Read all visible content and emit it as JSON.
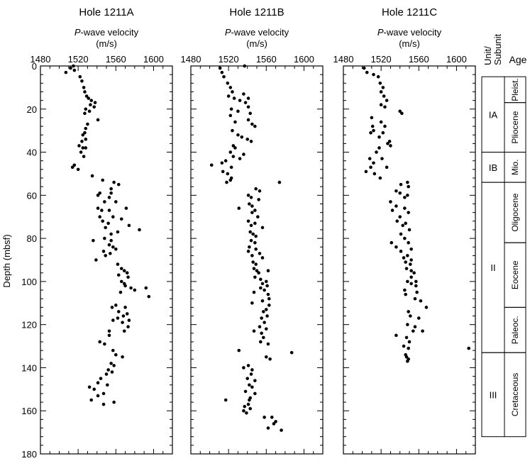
{
  "chart_data": [
    {
      "type": "scatter",
      "title": "Hole 1211A",
      "xlabel_italic": "P",
      "xlabel_rest": "-wave velocity",
      "xlabel_units": "(m/s)",
      "ylabel": "Depth (mbsf)",
      "xlim": [
        1480,
        1620
      ],
      "ylim": [
        0,
        180
      ],
      "xticks": [
        1480,
        1520,
        1560,
        1600
      ],
      "yticks": [
        0,
        20,
        40,
        60,
        80,
        100,
        120,
        140,
        160,
        180
      ],
      "points": [
        [
          1507,
          3
        ],
        [
          1512,
          1
        ],
        [
          1515,
          0
        ],
        [
          1516,
          2
        ],
        [
          1522,
          5
        ],
        [
          1524,
          7
        ],
        [
          1526,
          10
        ],
        [
          1527,
          12
        ],
        [
          1529,
          14
        ],
        [
          1531,
          15
        ],
        [
          1534,
          16
        ],
        [
          1533,
          18
        ],
        [
          1537,
          19
        ],
        [
          1538,
          17
        ],
        [
          1528,
          20
        ],
        [
          1532,
          21
        ],
        [
          1527,
          22
        ],
        [
          1541,
          25
        ],
        [
          1530,
          27
        ],
        [
          1528,
          29
        ],
        [
          1527,
          31
        ],
        [
          1525,
          32
        ],
        [
          1528,
          34
        ],
        [
          1524,
          35
        ],
        [
          1521,
          37
        ],
        [
          1525,
          38
        ],
        [
          1528,
          38
        ],
        [
          1523,
          40
        ],
        [
          1526,
          42
        ],
        [
          1516,
          46
        ],
        [
          1514,
          47
        ],
        [
          1520,
          48
        ],
        [
          1535,
          51
        ],
        [
          1546,
          53
        ],
        [
          1558,
          54
        ],
        [
          1563,
          55
        ],
        [
          1555,
          57
        ],
        [
          1543,
          59
        ],
        [
          1555,
          59
        ],
        [
          1541,
          60
        ],
        [
          1553,
          61
        ],
        [
          1548,
          63
        ],
        [
          1560,
          63
        ],
        [
          1541,
          66
        ],
        [
          1545,
          67
        ],
        [
          1553,
          67
        ],
        [
          1571,
          66
        ],
        [
          1543,
          70
        ],
        [
          1557,
          70
        ],
        [
          1566,
          71
        ],
        [
          1546,
          72
        ],
        [
          1552,
          73
        ],
        [
          1574,
          74
        ],
        [
          1549,
          75
        ],
        [
          1585,
          76
        ],
        [
          1562,
          77
        ],
        [
          1555,
          78
        ],
        [
          1548,
          80
        ],
        [
          1536,
          81
        ],
        [
          1555,
          81
        ],
        [
          1553,
          83
        ],
        [
          1557,
          84
        ],
        [
          1560,
          85
        ],
        [
          1547,
          86
        ],
        [
          1554,
          87
        ],
        [
          1549,
          88
        ],
        [
          1539,
          90
        ],
        [
          1562,
          92
        ],
        [
          1566,
          94
        ],
        [
          1569,
          95
        ],
        [
          1572,
          96
        ],
        [
          1563,
          97
        ],
        [
          1573,
          98
        ],
        [
          1566,
          100
        ],
        [
          1569,
          101
        ],
        [
          1570,
          102
        ],
        [
          1576,
          103
        ],
        [
          1592,
          103
        ],
        [
          1580,
          104
        ],
        [
          1565,
          105
        ],
        [
          1595,
          107
        ],
        [
          1560,
          111
        ],
        [
          1556,
          112
        ],
        [
          1570,
          112
        ],
        [
          1563,
          114
        ],
        [
          1572,
          115
        ],
        [
          1568,
          116
        ],
        [
          1562,
          117
        ],
        [
          1557,
          118
        ],
        [
          1574,
          118
        ],
        [
          1567,
          119
        ],
        [
          1573,
          121
        ],
        [
          1553,
          123
        ],
        [
          1569,
          123
        ],
        [
          1553,
          125
        ],
        [
          1543,
          128
        ],
        [
          1548,
          129
        ],
        [
          1557,
          132
        ],
        [
          1560,
          134
        ],
        [
          1567,
          135
        ],
        [
          1555,
          138
        ],
        [
          1558,
          139
        ],
        [
          1552,
          141
        ],
        [
          1556,
          142
        ],
        [
          1550,
          143
        ],
        [
          1544,
          145
        ],
        [
          1541,
          147
        ],
        [
          1551,
          148
        ],
        [
          1532,
          149
        ],
        [
          1537,
          150
        ],
        [
          1547,
          152
        ],
        [
          1541,
          153
        ],
        [
          1534,
          155
        ],
        [
          1558,
          156
        ],
        [
          1547,
          157
        ]
      ]
    },
    {
      "type": "scatter",
      "title": "Hole 1211B",
      "xlabel_italic": "P",
      "xlabel_rest": "-wave velocity",
      "xlabel_units": "(m/s)",
      "xlim": [
        1480,
        1620
      ],
      "ylim": [
        0,
        180
      ],
      "xticks": [
        1480,
        1520,
        1560,
        1600
      ],
      "yticks": [
        0,
        20,
        40,
        60,
        80,
        100,
        120,
        140,
        160,
        180
      ],
      "points": [
        [
          1513,
          3
        ],
        [
          1515,
          5
        ],
        [
          1537,
          0
        ],
        [
          1511,
          1
        ],
        [
          1519,
          8
        ],
        [
          1522,
          10
        ],
        [
          1524,
          12
        ],
        [
          1520,
          14
        ],
        [
          1526,
          15
        ],
        [
          1536,
          13
        ],
        [
          1541,
          15
        ],
        [
          1532,
          16
        ],
        [
          1538,
          17
        ],
        [
          1541,
          19
        ],
        [
          1523,
          20
        ],
        [
          1530,
          21
        ],
        [
          1543,
          22
        ],
        [
          1522,
          23
        ],
        [
          1541,
          25
        ],
        [
          1527,
          26
        ],
        [
          1545,
          27
        ],
        [
          1548,
          28
        ],
        [
          1524,
          30
        ],
        [
          1530,
          32
        ],
        [
          1534,
          33
        ],
        [
          1540,
          34
        ],
        [
          1544,
          35
        ],
        [
          1525,
          37
        ],
        [
          1527,
          38
        ],
        [
          1522,
          40
        ],
        [
          1536,
          41
        ],
        [
          1525,
          42
        ],
        [
          1532,
          43
        ],
        [
          1517,
          44
        ],
        [
          1513,
          45
        ],
        [
          1502,
          46
        ],
        [
          1523,
          47
        ],
        [
          1514,
          49
        ],
        [
          1519,
          50
        ],
        [
          1523,
          52
        ],
        [
          1522,
          53
        ],
        [
          1518,
          54
        ],
        [
          1574,
          54
        ],
        [
          1549,
          57
        ],
        [
          1553,
          58
        ],
        [
          1541,
          60
        ],
        [
          1544,
          61
        ],
        [
          1552,
          62
        ],
        [
          1542,
          64
        ],
        [
          1545,
          65
        ],
        [
          1531,
          66
        ],
        [
          1548,
          67
        ],
        [
          1545,
          68
        ],
        [
          1551,
          70
        ],
        [
          1541,
          72
        ],
        [
          1548,
          73
        ],
        [
          1544,
          74
        ],
        [
          1556,
          75
        ],
        [
          1543,
          77
        ],
        [
          1546,
          78
        ],
        [
          1549,
          79
        ],
        [
          1544,
          81
        ],
        [
          1548,
          82
        ],
        [
          1542,
          84
        ],
        [
          1549,
          85
        ],
        [
          1541,
          86
        ],
        [
          1553,
          87
        ],
        [
          1545,
          88
        ],
        [
          1556,
          89
        ],
        [
          1546,
          91
        ],
        [
          1549,
          92
        ],
        [
          1547,
          94
        ],
        [
          1550,
          95
        ],
        [
          1562,
          95
        ],
        [
          1552,
          96
        ],
        [
          1548,
          98
        ],
        [
          1554,
          99
        ],
        [
          1560,
          100
        ],
        [
          1556,
          101
        ],
        [
          1561,
          102
        ],
        [
          1554,
          103
        ],
        [
          1558,
          104
        ],
        [
          1547,
          105
        ],
        [
          1562,
          106
        ],
        [
          1563,
          108
        ],
        [
          1556,
          109
        ],
        [
          1545,
          110
        ],
        [
          1563,
          111
        ],
        [
          1560,
          113
        ],
        [
          1557,
          114
        ],
        [
          1561,
          116
        ],
        [
          1555,
          117
        ],
        [
          1558,
          119
        ],
        [
          1553,
          121
        ],
        [
          1560,
          122
        ],
        [
          1547,
          123
        ],
        [
          1555,
          124
        ],
        [
          1557,
          126
        ],
        [
          1554,
          128
        ],
        [
          1562,
          129
        ],
        [
          1531,
          132
        ],
        [
          1587,
          133
        ],
        [
          1560,
          135
        ],
        [
          1564,
          136
        ],
        [
          1541,
          139
        ],
        [
          1536,
          140
        ],
        [
          1545,
          141
        ],
        [
          1544,
          143
        ],
        [
          1540,
          145
        ],
        [
          1548,
          146
        ],
        [
          1542,
          148
        ],
        [
          1545,
          149
        ],
        [
          1538,
          151
        ],
        [
          1548,
          152
        ],
        [
          1543,
          154
        ],
        [
          1542,
          155
        ],
        [
          1517,
          155
        ],
        [
          1541,
          157
        ],
        [
          1537,
          158
        ],
        [
          1543,
          159
        ],
        [
          1536,
          160
        ],
        [
          1539,
          161
        ],
        [
          1558,
          163
        ],
        [
          1566,
          163
        ],
        [
          1570,
          165
        ],
        [
          1568,
          166
        ],
        [
          1562,
          168
        ],
        [
          1576,
          169
        ]
      ]
    },
    {
      "type": "scatter",
      "title": "Hole 1211C",
      "xlabel_italic": "P",
      "xlabel_rest": "-wave velocity",
      "xlabel_units": "(m/s)",
      "xlim": [
        1480,
        1620
      ],
      "ylim": [
        0,
        180
      ],
      "xticks": [
        1480,
        1520,
        1560,
        1600
      ],
      "yticks": [
        0,
        20,
        40,
        60,
        80,
        100,
        120,
        140,
        160,
        180
      ],
      "points": [
        [
          1502,
          1
        ],
        [
          1505,
          3
        ],
        [
          1512,
          4
        ],
        [
          1517,
          5
        ],
        [
          1519,
          8
        ],
        [
          1522,
          10
        ],
        [
          1520,
          12
        ],
        [
          1523,
          14
        ],
        [
          1526,
          16
        ],
        [
          1520,
          18
        ],
        [
          1524,
          19
        ],
        [
          1540,
          21
        ],
        [
          1542,
          22
        ],
        [
          1510,
          24
        ],
        [
          1520,
          26
        ],
        [
          1511,
          28
        ],
        [
          1524,
          28
        ],
        [
          1512,
          30
        ],
        [
          1509,
          31
        ],
        [
          1522,
          31
        ],
        [
          1518,
          33
        ],
        [
          1529,
          35
        ],
        [
          1527,
          36
        ],
        [
          1530,
          37
        ],
        [
          1518,
          38
        ],
        [
          1515,
          40
        ],
        [
          1508,
          43
        ],
        [
          1521,
          43
        ],
        [
          1512,
          45
        ],
        [
          1509,
          47
        ],
        [
          1526,
          47
        ],
        [
          1504,
          49
        ],
        [
          1513,
          50
        ],
        [
          1519,
          52
        ],
        [
          1548,
          54
        ],
        [
          1541,
          55
        ],
        [
          1549,
          56
        ],
        [
          1536,
          58
        ],
        [
          1540,
          59
        ],
        [
          1548,
          60
        ],
        [
          1545,
          61
        ],
        [
          1530,
          63
        ],
        [
          1536,
          65
        ],
        [
          1545,
          66
        ],
        [
          1532,
          67
        ],
        [
          1549,
          68
        ],
        [
          1540,
          70
        ],
        [
          1537,
          72
        ],
        [
          1546,
          73
        ],
        [
          1543,
          74
        ],
        [
          1550,
          76
        ],
        [
          1541,
          78
        ],
        [
          1545,
          80
        ],
        [
          1531,
          82
        ],
        [
          1549,
          82
        ],
        [
          1536,
          84
        ],
        [
          1552,
          85
        ],
        [
          1541,
          86
        ],
        [
          1548,
          88
        ],
        [
          1544,
          89
        ],
        [
          1552,
          90
        ],
        [
          1546,
          91
        ],
        [
          1551,
          92
        ],
        [
          1547,
          94
        ],
        [
          1552,
          95
        ],
        [
          1555,
          96
        ],
        [
          1552,
          98
        ],
        [
          1548,
          100
        ],
        [
          1557,
          100
        ],
        [
          1552,
          101
        ],
        [
          1557,
          102
        ],
        [
          1545,
          104
        ],
        [
          1558,
          105
        ],
        [
          1546,
          106
        ],
        [
          1556,
          108
        ],
        [
          1562,
          109
        ],
        [
          1568,
          112
        ],
        [
          1549,
          114
        ],
        [
          1551,
          116
        ],
        [
          1560,
          117
        ],
        [
          1548,
          120
        ],
        [
          1556,
          121
        ],
        [
          1554,
          123
        ],
        [
          1564,
          123
        ],
        [
          1536,
          125
        ],
        [
          1547,
          126
        ],
        [
          1550,
          128
        ],
        [
          1544,
          130
        ],
        [
          1549,
          131
        ],
        [
          1613,
          131
        ],
        [
          1546,
          134
        ],
        [
          1547,
          135
        ],
        [
          1549,
          136
        ],
        [
          1548,
          137
        ]
      ]
    }
  ],
  "stratigraphy": {
    "unit_header": "Unit/\nSubunit",
    "age_header": "Age",
    "units": [
      {
        "label": "IA",
        "top": 5,
        "bottom": 40
      },
      {
        "label": "IB",
        "top": 40,
        "bottom": 54
      },
      {
        "label": "II",
        "top": 54,
        "bottom": 133
      },
      {
        "label": "III",
        "top": 133,
        "bottom": 172
      }
    ],
    "ages": [
      {
        "label": "Pleist.",
        "top": 5,
        "bottom": 17
      },
      {
        "label": "Pliocene",
        "top": 17,
        "bottom": 40
      },
      {
        "label": "Mio.",
        "top": 40,
        "bottom": 54
      },
      {
        "label": "Oligocene",
        "top": 54,
        "bottom": 82
      },
      {
        "label": "Eocene",
        "top": 82,
        "bottom": 112
      },
      {
        "label": "Paleoc.",
        "top": 112,
        "bottom": 133
      },
      {
        "label": "Cretaceous",
        "top": 133,
        "bottom": 172
      }
    ]
  }
}
